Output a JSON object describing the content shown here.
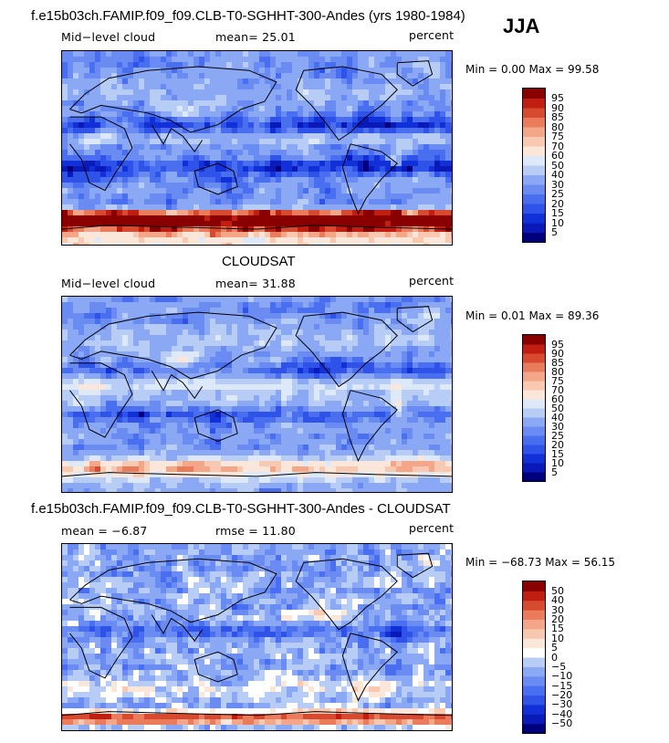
{
  "season": "JJA",
  "chart_data": [
    {
      "type": "heatmap",
      "title": "f.e15b03ch.FAMIP.f09_f09.CLB-T0-SGHHT-300-Andes (yrs 1980-1984)",
      "left_label": "Mid−level cloud",
      "mean_text": "mean=  25.01",
      "mean": 25.01,
      "units": "percent",
      "min_text": "Min =    0.00 Max =   99.58",
      "min": 0.0,
      "max": 99.58,
      "levels": [
        "5",
        "10",
        "15",
        "20",
        "25",
        "30",
        "40",
        "50",
        "60",
        "70",
        "75",
        "80",
        "85",
        "90",
        "95"
      ]
    },
    {
      "type": "heatmap",
      "title": "CLOUDSAT",
      "left_label": "Mid−level cloud",
      "mean_text": "mean=  31.88",
      "mean": 31.88,
      "units": "percent",
      "min_text": "Min =    0.01 Max =   89.36",
      "min": 0.01,
      "max": 89.36,
      "levels": [
        "5",
        "10",
        "15",
        "20",
        "25",
        "30",
        "40",
        "50",
        "60",
        "70",
        "75",
        "80",
        "85",
        "90",
        "95"
      ]
    },
    {
      "type": "heatmap",
      "title": "f.e15b03ch.FAMIP.f09_f09.CLB-T0-SGHHT-300-Andes - CLOUDSAT",
      "left_label": "mean =  −6.87",
      "mean": -6.87,
      "rmse_text": "rmse =   11.80",
      "rmse": 11.8,
      "units": "percent",
      "min_text": "Min = −68.73 Max =   56.15",
      "min": -68.73,
      "max": 56.15,
      "levels": [
        "−50",
        "−40",
        "−30",
        "−20",
        "−15",
        "−10",
        "−5",
        "0",
        "5",
        "10",
        "15",
        "20",
        "30",
        "40",
        "50"
      ]
    }
  ],
  "colors": {
    "abs_scale": [
      "#00007f",
      "#0a1ab8",
      "#1230d8",
      "#2f52e8",
      "#4a6ef0",
      "#6a8cf2",
      "#8aa8f4",
      "#b8cdf6",
      "#dde8f8",
      "#fbe6da",
      "#f8c8b0",
      "#f4a688",
      "#ea7c5c",
      "#d84a30",
      "#c01e10",
      "#8a0000"
    ],
    "diff_scale": [
      "#00007f",
      "#0a1ab8",
      "#1230d8",
      "#2f52e8",
      "#4a6ef0",
      "#6a8cf2",
      "#8aa8f4",
      "#b8cdf6",
      "#ffffff",
      "#fbe6da",
      "#f8c8b0",
      "#f4a688",
      "#ea7c5c",
      "#d84a30",
      "#c01e10",
      "#8a0000"
    ]
  }
}
